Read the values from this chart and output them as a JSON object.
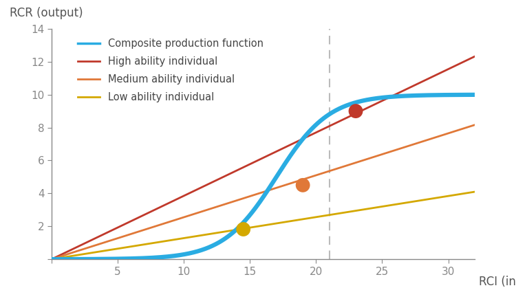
{
  "xlabel": "RCI (input)",
  "ylabel": "RCR (output)",
  "xlim": [
    0,
    32
  ],
  "ylim": [
    0,
    14
  ],
  "xticks": [
    0,
    5,
    10,
    15,
    20,
    25,
    30
  ],
  "yticks": [
    0,
    2,
    4,
    6,
    8,
    10,
    12,
    14
  ],
  "composite_color": "#2AACE2",
  "high_color": "#C0392B",
  "medium_color": "#E07838",
  "low_color": "#D4A800",
  "dashed_line_x": 21,
  "dot_low": [
    14.5,
    1.82
  ],
  "dot_medium": [
    19.0,
    4.5
  ],
  "dot_high": [
    23.0,
    9.0
  ],
  "legend_labels": [
    "Composite production function",
    "High ability individual",
    "Medium ability individual",
    "Low ability individual"
  ],
  "high_slope": 0.385,
  "medium_slope": 0.255,
  "low_slope": 0.128,
  "composite_L": 10.0,
  "composite_k": 0.5,
  "composite_x0": 17.0
}
